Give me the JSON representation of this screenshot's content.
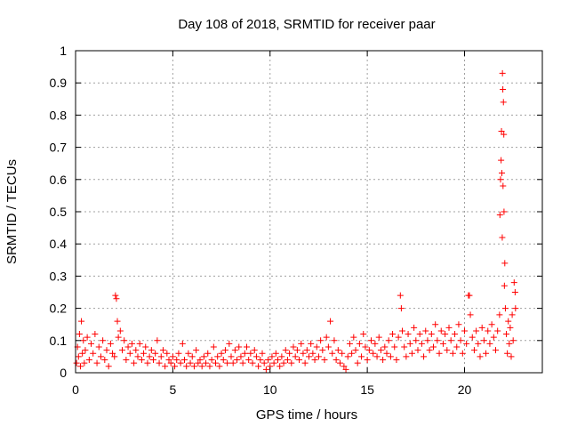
{
  "chart_data": {
    "type": "scatter",
    "title": "Day 108 of 2018, SRMTID for receiver paar",
    "xlabel": "GPS time / hours",
    "ylabel": "SRMTID / TECUs",
    "xlim": [
      0,
      24
    ],
    "ylim": [
      0,
      1
    ],
    "x_ticks": [
      "0",
      "5",
      "10",
      "15",
      "20"
    ],
    "y_ticks": [
      "0",
      "0.1",
      "0.2",
      "0.3",
      "0.4",
      "0.5",
      "0.6",
      "0.7",
      "0.8",
      "0.9",
      "1"
    ],
    "grid": true,
    "series": [
      {
        "name": "SRMTID",
        "color": "#ff0000",
        "marker": "plus",
        "points": [
          [
            0.05,
            0.03
          ],
          [
            0.1,
            0.08
          ],
          [
            0.15,
            0.05
          ],
          [
            0.2,
            0.12
          ],
          [
            0.25,
            0.02
          ],
          [
            0.3,
            0.16
          ],
          [
            0.35,
            0.06
          ],
          [
            0.4,
            0.1
          ],
          [
            0.45,
            0.03
          ],
          [
            0.5,
            0.07
          ],
          [
            0.6,
            0.11
          ],
          [
            0.7,
            0.04
          ],
          [
            0.8,
            0.09
          ],
          [
            0.9,
            0.06
          ],
          [
            1.0,
            0.12
          ],
          [
            1.1,
            0.03
          ],
          [
            1.2,
            0.08
          ],
          [
            1.3,
            0.05
          ],
          [
            1.4,
            0.1
          ],
          [
            1.5,
            0.04
          ],
          [
            1.6,
            0.07
          ],
          [
            1.7,
            0.02
          ],
          [
            1.8,
            0.09
          ],
          [
            1.9,
            0.06
          ],
          [
            2.0,
            0.05
          ],
          [
            2.05,
            0.24
          ],
          [
            2.1,
            0.23
          ],
          [
            2.15,
            0.16
          ],
          [
            2.2,
            0.11
          ],
          [
            2.3,
            0.13
          ],
          [
            2.4,
            0.07
          ],
          [
            2.5,
            0.1
          ],
          [
            2.6,
            0.04
          ],
          [
            2.7,
            0.08
          ],
          [
            2.8,
            0.06
          ],
          [
            2.9,
            0.09
          ],
          [
            3.0,
            0.03
          ],
          [
            3.1,
            0.07
          ],
          [
            3.2,
            0.05
          ],
          [
            3.3,
            0.09
          ],
          [
            3.4,
            0.04
          ],
          [
            3.5,
            0.06
          ],
          [
            3.6,
            0.08
          ],
          [
            3.7,
            0.03
          ],
          [
            3.8,
            0.05
          ],
          [
            3.9,
            0.07
          ],
          [
            4.0,
            0.04
          ],
          [
            4.1,
            0.06
          ],
          [
            4.2,
            0.1
          ],
          [
            4.3,
            0.03
          ],
          [
            4.4,
            0.05
          ],
          [
            4.5,
            0.07
          ],
          [
            4.6,
            0.02
          ],
          [
            4.7,
            0.06
          ],
          [
            4.8,
            0.04
          ],
          [
            4.9,
            0.03
          ],
          [
            5.0,
            0.05
          ],
          [
            5.1,
            0.02
          ],
          [
            5.2,
            0.04
          ],
          [
            5.3,
            0.06
          ],
          [
            5.4,
            0.03
          ],
          [
            5.5,
            0.09
          ],
          [
            5.6,
            0.04
          ],
          [
            5.7,
            0.02
          ],
          [
            5.8,
            0.06
          ],
          [
            5.9,
            0.03
          ],
          [
            6.0,
            0.05
          ],
          [
            6.1,
            0.02
          ],
          [
            6.2,
            0.07
          ],
          [
            6.3,
            0.03
          ],
          [
            6.4,
            0.04
          ],
          [
            6.5,
            0.02
          ],
          [
            6.6,
            0.05
          ],
          [
            6.7,
            0.03
          ],
          [
            6.8,
            0.06
          ],
          [
            6.9,
            0.02
          ],
          [
            7.0,
            0.04
          ],
          [
            7.1,
            0.08
          ],
          [
            7.2,
            0.03
          ],
          [
            7.3,
            0.05
          ],
          [
            7.4,
            0.02
          ],
          [
            7.5,
            0.06
          ],
          [
            7.6,
            0.04
          ],
          [
            7.7,
            0.07
          ],
          [
            7.8,
            0.03
          ],
          [
            7.9,
            0.09
          ],
          [
            8.0,
            0.05
          ],
          [
            8.1,
            0.03
          ],
          [
            8.2,
            0.07
          ],
          [
            8.3,
            0.04
          ],
          [
            8.4,
            0.08
          ],
          [
            8.5,
            0.05
          ],
          [
            8.6,
            0.03
          ],
          [
            8.7,
            0.06
          ],
          [
            8.8,
            0.08
          ],
          [
            8.9,
            0.04
          ],
          [
            9.0,
            0.06
          ],
          [
            9.1,
            0.03
          ],
          [
            9.2,
            0.07
          ],
          [
            9.3,
            0.05
          ],
          [
            9.4,
            0.02
          ],
          [
            9.5,
            0.04
          ],
          [
            9.6,
            0.06
          ],
          [
            9.7,
            0.03
          ],
          [
            9.8,
            0.01
          ],
          [
            9.9,
            0.04
          ],
          [
            10.0,
            0.02
          ],
          [
            10.1,
            0.05
          ],
          [
            10.2,
            0.03
          ],
          [
            10.3,
            0.06
          ],
          [
            10.4,
            0.04
          ],
          [
            10.5,
            0.02
          ],
          [
            10.6,
            0.05
          ],
          [
            10.7,
            0.03
          ],
          [
            10.8,
            0.07
          ],
          [
            10.9,
            0.04
          ],
          [
            11.0,
            0.06
          ],
          [
            11.1,
            0.03
          ],
          [
            11.2,
            0.08
          ],
          [
            11.3,
            0.05
          ],
          [
            11.4,
            0.07
          ],
          [
            11.5,
            0.04
          ],
          [
            11.6,
            0.09
          ],
          [
            11.7,
            0.06
          ],
          [
            11.8,
            0.03
          ],
          [
            11.9,
            0.07
          ],
          [
            12.0,
            0.05
          ],
          [
            12.1,
            0.09
          ],
          [
            12.2,
            0.06
          ],
          [
            12.3,
            0.04
          ],
          [
            12.4,
            0.08
          ],
          [
            12.5,
            0.05
          ],
          [
            12.6,
            0.1
          ],
          [
            12.7,
            0.07
          ],
          [
            12.8,
            0.04
          ],
          [
            12.9,
            0.11
          ],
          [
            13.0,
            0.08
          ],
          [
            13.1,
            0.16
          ],
          [
            13.2,
            0.06
          ],
          [
            13.3,
            0.1
          ],
          [
            13.4,
            0.04
          ],
          [
            13.5,
            0.07
          ],
          [
            13.6,
            0.03
          ],
          [
            13.7,
            0.06
          ],
          [
            13.8,
            0.02
          ],
          [
            13.9,
            0.01
          ],
          [
            14.0,
            0.05
          ],
          [
            14.1,
            0.09
          ],
          [
            14.2,
            0.06
          ],
          [
            14.3,
            0.11
          ],
          [
            14.4,
            0.07
          ],
          [
            14.5,
            0.03
          ],
          [
            14.6,
            0.09
          ],
          [
            14.7,
            0.05
          ],
          [
            14.8,
            0.12
          ],
          [
            14.9,
            0.08
          ],
          [
            15.0,
            0.04
          ],
          [
            15.1,
            0.07
          ],
          [
            15.2,
            0.1
          ],
          [
            15.3,
            0.06
          ],
          [
            15.4,
            0.09
          ],
          [
            15.5,
            0.05
          ],
          [
            15.6,
            0.11
          ],
          [
            15.7,
            0.07
          ],
          [
            15.8,
            0.04
          ],
          [
            15.9,
            0.08
          ],
          [
            16.0,
            0.06
          ],
          [
            16.1,
            0.1
          ],
          [
            16.2,
            0.05
          ],
          [
            16.3,
            0.12
          ],
          [
            16.4,
            0.08
          ],
          [
            16.5,
            0.04
          ],
          [
            16.6,
            0.11
          ],
          [
            16.7,
            0.24
          ],
          [
            16.75,
            0.2
          ],
          [
            16.8,
            0.13
          ],
          [
            16.9,
            0.08
          ],
          [
            17.0,
            0.05
          ],
          [
            17.1,
            0.12
          ],
          [
            17.2,
            0.09
          ],
          [
            17.3,
            0.06
          ],
          [
            17.4,
            0.14
          ],
          [
            17.5,
            0.1
          ],
          [
            17.6,
            0.07
          ],
          [
            17.7,
            0.12
          ],
          [
            17.8,
            0.09
          ],
          [
            17.9,
            0.05
          ],
          [
            18.0,
            0.13
          ],
          [
            18.1,
            0.1
          ],
          [
            18.2,
            0.07
          ],
          [
            18.3,
            0.12
          ],
          [
            18.4,
            0.08
          ],
          [
            18.5,
            0.15
          ],
          [
            18.6,
            0.1
          ],
          [
            18.7,
            0.06
          ],
          [
            18.8,
            0.13
          ],
          [
            18.9,
            0.09
          ],
          [
            19.0,
            0.12
          ],
          [
            19.1,
            0.07
          ],
          [
            19.2,
            0.14
          ],
          [
            19.3,
            0.1
          ],
          [
            19.4,
            0.06
          ],
          [
            19.5,
            0.12
          ],
          [
            19.6,
            0.08
          ],
          [
            19.7,
            0.15
          ],
          [
            19.8,
            0.1
          ],
          [
            19.9,
            0.06
          ],
          [
            20.0,
            0.13
          ],
          [
            20.1,
            0.09
          ],
          [
            20.2,
            0.24
          ],
          [
            20.25,
            0.24
          ],
          [
            20.3,
            0.18
          ],
          [
            20.4,
            0.11
          ],
          [
            20.5,
            0.07
          ],
          [
            20.6,
            0.13
          ],
          [
            20.7,
            0.09
          ],
          [
            20.8,
            0.05
          ],
          [
            20.9,
            0.14
          ],
          [
            21.0,
            0.1
          ],
          [
            21.1,
            0.06
          ],
          [
            21.2,
            0.13
          ],
          [
            21.3,
            0.09
          ],
          [
            21.4,
            0.15
          ],
          [
            21.5,
            0.11
          ],
          [
            21.6,
            0.07
          ],
          [
            21.7,
            0.13
          ],
          [
            21.8,
            0.18
          ],
          [
            21.82,
            0.49
          ],
          [
            21.85,
            0.6
          ],
          [
            21.88,
            0.66
          ],
          [
            21.9,
            0.75
          ],
          [
            21.92,
            0.62
          ],
          [
            21.94,
            0.42
          ],
          [
            21.95,
            0.93
          ],
          [
            21.97,
            0.88
          ],
          [
            21.98,
            0.58
          ],
          [
            22.0,
            0.84
          ],
          [
            22.02,
            0.74
          ],
          [
            22.03,
            0.5
          ],
          [
            22.05,
            0.27
          ],
          [
            22.07,
            0.34
          ],
          [
            22.1,
            0.2
          ],
          [
            22.15,
            0.12
          ],
          [
            22.2,
            0.06
          ],
          [
            22.25,
            0.16
          ],
          [
            22.3,
            0.09
          ],
          [
            22.35,
            0.14
          ],
          [
            22.4,
            0.05
          ],
          [
            22.45,
            0.18
          ],
          [
            22.5,
            0.1
          ],
          [
            22.55,
            0.28
          ],
          [
            22.6,
            0.25
          ],
          [
            22.62,
            0.2
          ]
        ]
      }
    ]
  }
}
